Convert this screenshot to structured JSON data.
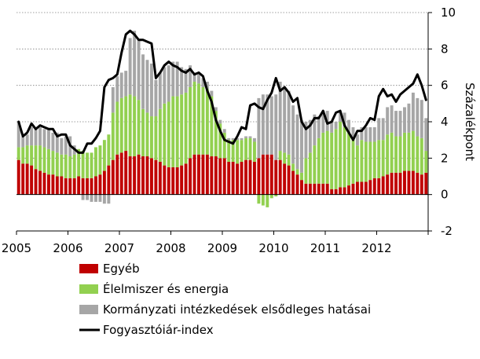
{
  "chart_data": {
    "type": "bar",
    "stacked": true,
    "title": "",
    "xlabel": "",
    "ylabel": "Százalékpont",
    "ylim": [
      -2,
      10
    ],
    "yticks": [
      -2,
      0,
      2,
      4,
      6,
      8,
      10
    ],
    "x_start": "2005-01",
    "x_tick_labels": [
      "2005",
      "2006",
      "2007",
      "2008",
      "2009",
      "2010",
      "2011",
      "2012"
    ],
    "grid": "horizontal dotted",
    "legend_position": "bottom-left",
    "series": [
      {
        "name": "Egyéb",
        "kind": "bar",
        "color": "#c00000",
        "values": [
          1.9,
          1.7,
          1.7,
          1.6,
          1.4,
          1.3,
          1.2,
          1.1,
          1.1,
          1.0,
          1.0,
          0.9,
          0.9,
          0.9,
          1.0,
          0.9,
          0.9,
          0.9,
          1.0,
          1.1,
          1.3,
          1.6,
          1.9,
          2.2,
          2.3,
          2.4,
          2.1,
          2.1,
          2.2,
          2.1,
          2.1,
          2.0,
          1.9,
          1.8,
          1.6,
          1.5,
          1.5,
          1.5,
          1.6,
          1.7,
          2.0,
          2.2,
          2.2,
          2.2,
          2.2,
          2.1,
          2.1,
          2.0,
          2.0,
          1.8,
          1.8,
          1.7,
          1.8,
          1.9,
          1.9,
          1.8,
          2.0,
          2.2,
          2.2,
          2.2,
          1.9,
          1.9,
          1.7,
          1.6,
          1.3,
          1.1,
          0.8,
          0.6,
          0.6,
          0.6,
          0.6,
          0.6,
          0.6,
          0.3,
          0.3,
          0.4,
          0.4,
          0.5,
          0.6,
          0.7,
          0.7,
          0.7,
          0.8,
          0.9,
          0.9,
          1.0,
          1.1,
          1.2,
          1.2,
          1.2,
          1.3,
          1.3,
          1.3,
          1.2,
          1.1,
          1.2
        ]
      },
      {
        "name": "Élelmiszer és energia",
        "kind": "bar",
        "color": "#92d050",
        "values": [
          0.7,
          0.9,
          1.0,
          1.1,
          1.3,
          1.4,
          1.4,
          1.4,
          1.3,
          1.3,
          1.2,
          1.3,
          1.2,
          1.3,
          1.5,
          1.5,
          1.4,
          1.4,
          1.6,
          1.6,
          1.7,
          1.7,
          2.6,
          2.9,
          3.0,
          3.0,
          3.4,
          3.3,
          3.0,
          2.6,
          2.4,
          2.3,
          2.4,
          2.9,
          3.4,
          3.6,
          3.9,
          3.9,
          3.9,
          3.9,
          3.9,
          4.0,
          3.9,
          3.7,
          3.6,
          3.3,
          2.5,
          1.9,
          1.4,
          1.2,
          1.2,
          1.3,
          1.2,
          1.2,
          1.2,
          1.1,
          -0.5,
          -0.6,
          -0.7,
          -0.2,
          -0.1,
          0.5,
          0.6,
          0.6,
          0.4,
          0.3,
          0.4,
          1.4,
          1.7,
          2.1,
          2.5,
          2.8,
          2.9,
          3.1,
          3.3,
          3.6,
          3.3,
          2.9,
          2.4,
          2.0,
          2.3,
          2.2,
          2.1,
          2.0,
          2.1,
          2.0,
          2.2,
          2.2,
          2.0,
          2.0,
          2.1,
          2.1,
          2.2,
          2.0,
          2.0,
          1.2
        ]
      },
      {
        "name": "Kormányzati intézkedések elsődleges hatásai",
        "kind": "bar",
        "color": "#a6a6a6",
        "values": [
          1.4,
          0.6,
          0.6,
          1.0,
          0.9,
          1.0,
          1.0,
          1.1,
          1.0,
          1.1,
          0.9,
          1.0,
          1.1,
          0.5,
          0.0,
          -0.3,
          -0.3,
          -0.4,
          -0.4,
          -0.4,
          -0.5,
          -0.5,
          1.4,
          1.4,
          1.4,
          1.4,
          3.1,
          3.6,
          3.3,
          3.0,
          2.9,
          2.9,
          2.0,
          2.0,
          2.0,
          2.0,
          1.9,
          1.9,
          1.5,
          1.3,
          1.2,
          0.5,
          0.5,
          0.5,
          0.4,
          0.3,
          0.2,
          0.2,
          0.2,
          0.1,
          0.1,
          0.1,
          0.1,
          0.1,
          0.1,
          0.2,
          3.3,
          3.3,
          3.3,
          3.2,
          3.6,
          3.8,
          3.6,
          3.5,
          3.2,
          3.0,
          2.9,
          2.0,
          1.8,
          1.7,
          1.2,
          1.2,
          1.1,
          0.6,
          0.4,
          0.5,
          0.8,
          0.7,
          0.7,
          0.6,
          0.7,
          0.8,
          0.8,
          0.8,
          1.2,
          1.2,
          1.5,
          1.5,
          1.4,
          1.4,
          1.4,
          1.6,
          2.1,
          2.1,
          2.1,
          1.8
        ]
      },
      {
        "name": "Fogyasztóiár-index",
        "kind": "line",
        "color": "#000000",
        "values": [
          4.0,
          3.2,
          3.4,
          3.9,
          3.6,
          3.8,
          3.7,
          3.6,
          3.6,
          3.2,
          3.3,
          3.3,
          2.7,
          2.5,
          2.3,
          2.3,
          2.8,
          2.8,
          3.1,
          3.5,
          5.9,
          6.3,
          6.4,
          6.6,
          7.8,
          8.8,
          9.0,
          8.8,
          8.5,
          8.5,
          8.4,
          8.3,
          6.4,
          6.7,
          7.1,
          7.3,
          7.1,
          7.0,
          6.8,
          6.7,
          6.9,
          6.6,
          6.7,
          6.5,
          5.7,
          5.1,
          4.1,
          3.5,
          3.0,
          2.9,
          2.8,
          3.2,
          3.7,
          3.6,
          4.9,
          5.0,
          4.8,
          4.7,
          5.2,
          5.6,
          6.4,
          5.7,
          5.9,
          5.6,
          5.1,
          5.3,
          4.0,
          3.6,
          3.8,
          4.2,
          4.2,
          4.6,
          3.9,
          4.0,
          4.5,
          4.6,
          3.8,
          3.4,
          3.0,
          3.5,
          3.5,
          3.8,
          4.2,
          4.1,
          5.4,
          5.8,
          5.4,
          5.5,
          5.1,
          5.5,
          5.7,
          5.9,
          6.1,
          6.6,
          6.0,
          5.2
        ]
      }
    ]
  }
}
